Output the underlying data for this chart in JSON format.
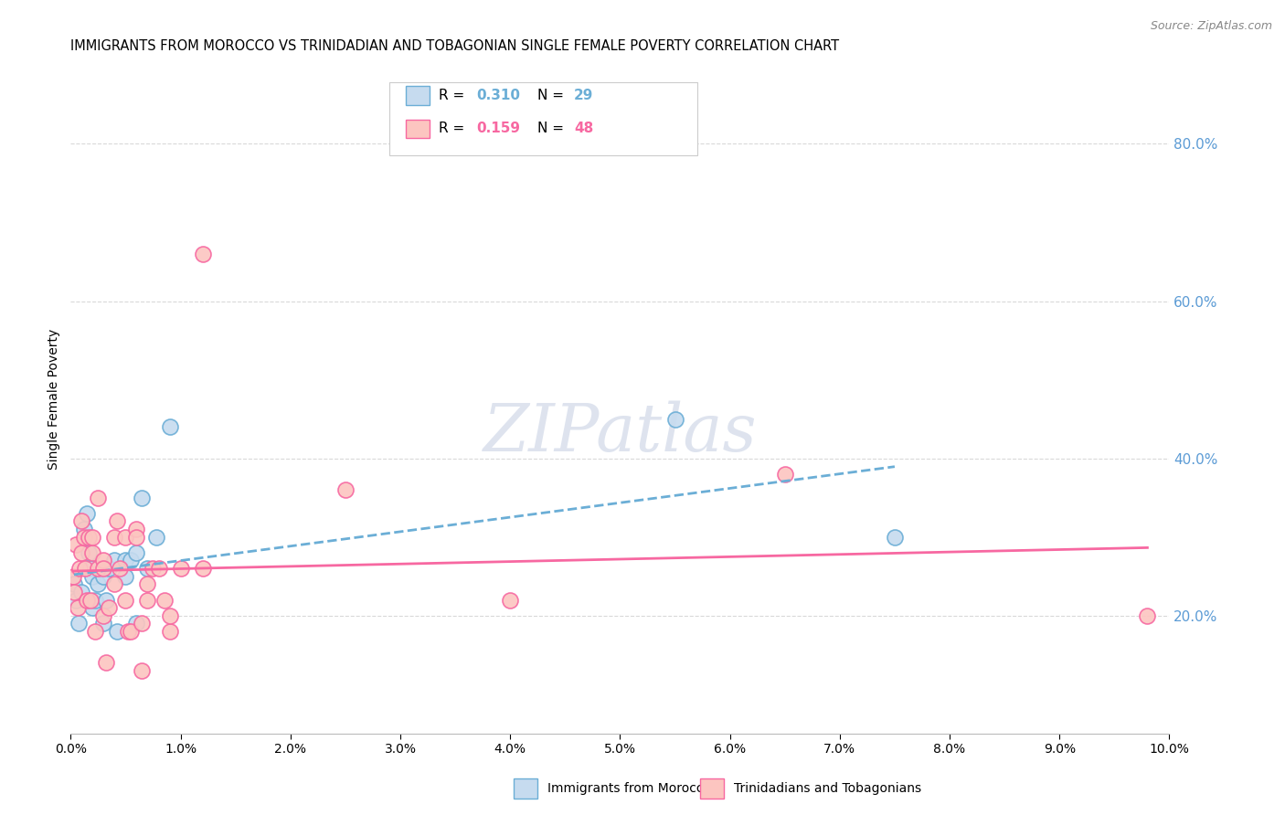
{
  "title": "IMMIGRANTS FROM MOROCCO VS TRINIDADIAN AND TOBAGONIAN SINGLE FEMALE POVERTY CORRELATION CHART",
  "source": "Source: ZipAtlas.com",
  "ylabel": "Single Female Poverty",
  "right_yticks": [
    "20.0%",
    "40.0%",
    "60.0%",
    "80.0%"
  ],
  "right_ytick_vals": [
    0.2,
    0.4,
    0.6,
    0.8
  ],
  "watermark": "ZIPatlas",
  "blue_color": "#6baed6",
  "pink_color": "#f768a1",
  "blue_fill": "#c6dbef",
  "pink_fill": "#fcc5c0",
  "morocco_x": [
    0.0003,
    0.0005,
    0.0007,
    0.001,
    0.0012,
    0.0015,
    0.0016,
    0.0018,
    0.002,
    0.002,
    0.0022,
    0.0025,
    0.003,
    0.003,
    0.0032,
    0.0035,
    0.004,
    0.0042,
    0.005,
    0.005,
    0.0055,
    0.006,
    0.006,
    0.007,
    0.0065,
    0.0078,
    0.009,
    0.055,
    0.075
  ],
  "morocco_y": [
    0.24,
    0.22,
    0.19,
    0.23,
    0.31,
    0.33,
    0.28,
    0.26,
    0.25,
    0.21,
    0.22,
    0.24,
    0.19,
    0.25,
    0.22,
    0.26,
    0.27,
    0.18,
    0.27,
    0.25,
    0.27,
    0.28,
    0.19,
    0.26,
    0.35,
    0.3,
    0.44,
    0.45,
    0.3
  ],
  "trinidad_x": [
    0.0002,
    0.0003,
    0.0005,
    0.0006,
    0.0008,
    0.001,
    0.001,
    0.0012,
    0.0013,
    0.0015,
    0.0016,
    0.0018,
    0.002,
    0.002,
    0.0022,
    0.0025,
    0.0025,
    0.003,
    0.003,
    0.003,
    0.0032,
    0.0035,
    0.004,
    0.004,
    0.0042,
    0.0045,
    0.005,
    0.005,
    0.0052,
    0.0055,
    0.006,
    0.006,
    0.007,
    0.0065,
    0.0065,
    0.007,
    0.0075,
    0.008,
    0.009,
    0.0085,
    0.009,
    0.01,
    0.012,
    0.012,
    0.025,
    0.04,
    0.065,
    0.098
  ],
  "trinidad_y": [
    0.25,
    0.23,
    0.29,
    0.21,
    0.26,
    0.32,
    0.28,
    0.3,
    0.26,
    0.22,
    0.3,
    0.22,
    0.28,
    0.3,
    0.18,
    0.35,
    0.26,
    0.27,
    0.26,
    0.2,
    0.14,
    0.21,
    0.24,
    0.3,
    0.32,
    0.26,
    0.3,
    0.22,
    0.18,
    0.18,
    0.31,
    0.3,
    0.22,
    0.19,
    0.13,
    0.24,
    0.26,
    0.26,
    0.18,
    0.22,
    0.2,
    0.26,
    0.66,
    0.26,
    0.36,
    0.22,
    0.38,
    0.2
  ],
  "xlim": [
    0.0,
    0.1
  ],
  "ylim": [
    0.05,
    0.9
  ],
  "axis_color": "#5b9bd5",
  "grid_color": "#d9d9d9"
}
